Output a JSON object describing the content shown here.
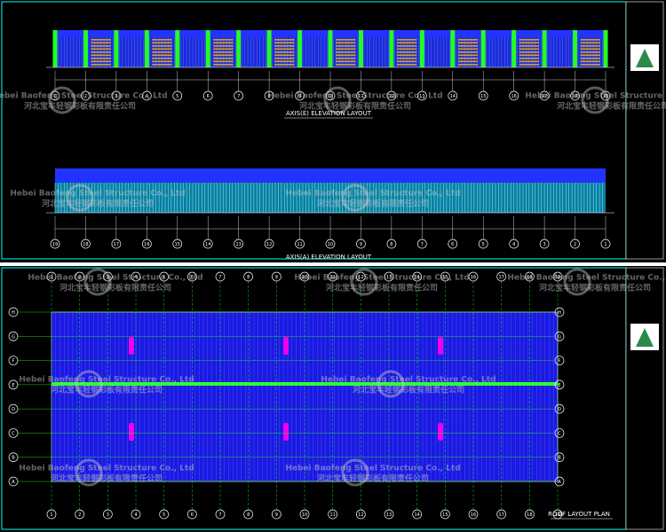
{
  "watermark": {
    "en": "Hebei Baofeng Steel Structure Co., Ltd",
    "cn": "河北宝丰轻钢彩板有限责任公司"
  },
  "elevation_1": {
    "title": "AXIS(E) ELEVATION LAYOUT",
    "axes": [
      "1",
      "2",
      "3",
      "4",
      "5",
      "6",
      "7",
      "8",
      "9",
      "10",
      "11",
      "12",
      "13",
      "14",
      "15",
      "16",
      "17",
      "18",
      "19"
    ]
  },
  "elevation_2": {
    "title": "AXIS(A) ELEVATION LAYOUT",
    "axes": [
      "19",
      "18",
      "17",
      "16",
      "15",
      "14",
      "13",
      "12",
      "11",
      "10",
      "9",
      "8",
      "7",
      "6",
      "5",
      "4",
      "3",
      "2",
      "1"
    ]
  },
  "roof_plan": {
    "title": "ROOF LAYOUT PLAN",
    "axes_x": [
      "1",
      "2",
      "3",
      "4",
      "5",
      "6",
      "7",
      "8",
      "9",
      "10",
      "11",
      "12",
      "13",
      "14",
      "15",
      "16",
      "17",
      "18",
      "19"
    ],
    "axes_y": [
      "H",
      "G",
      "F",
      "E",
      "D",
      "C",
      "B",
      "A"
    ]
  }
}
